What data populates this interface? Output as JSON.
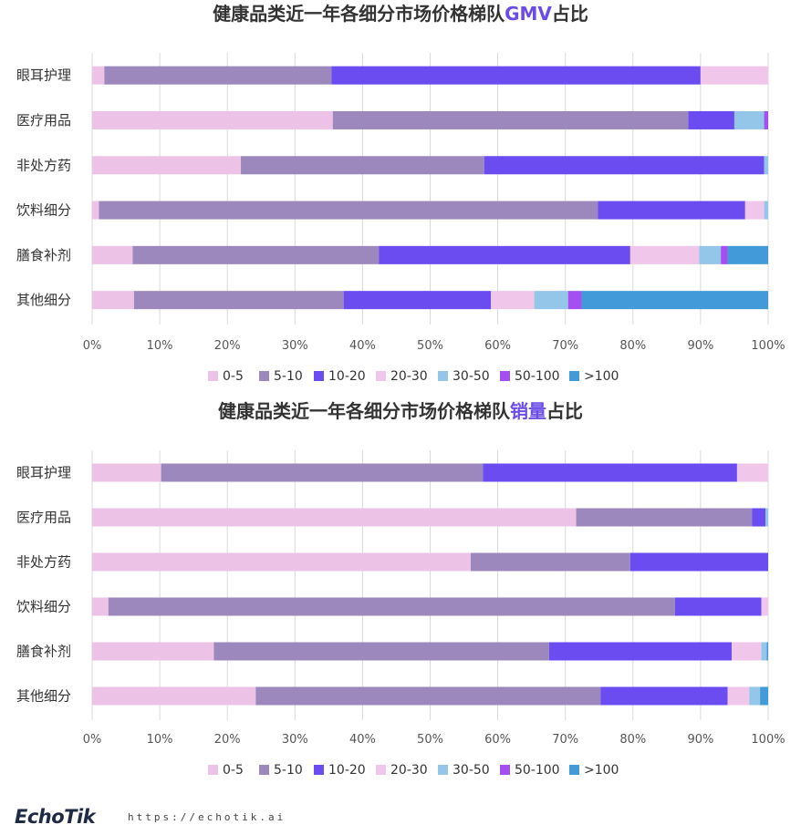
{
  "colors": {
    "0-5": "#ecc3e6",
    "5-10": "#9c88bc",
    "10-20": "#6a4cf0",
    "20-30": "#f0c6ea",
    "30-50": "#94c6ea",
    "50-100": "#a64ff0",
    ">100": "#429ad9",
    "title_highlight": "#6b4ce6"
  },
  "chart_data": [
    {
      "type": "bar",
      "orientation": "horizontal",
      "stacked": true,
      "title": {
        "prefix": "健康品类近一年各细分市场价格梯队",
        "highlight": "GMV",
        "suffix": "占比"
      },
      "categories": [
        "眼耳护理",
        "医疗用品",
        "非处方药",
        "饮料细分",
        "膳食补剂",
        "其他细分"
      ],
      "xlim": [
        0,
        100
      ],
      "xticks": [
        "0%",
        "10%",
        "20%",
        "30%",
        "40%",
        "50%",
        "60%",
        "70%",
        "80%",
        "90%",
        "100%"
      ],
      "legend": [
        "0-5",
        "5-10",
        "10-20",
        "20-30",
        "30-50",
        "50-100",
        ">100"
      ],
      "legend_position": "bottom",
      "series": [
        {
          "name": "0-5",
          "values": [
            1.8,
            35.6,
            22.0,
            1.0,
            6.0,
            6.2
          ]
        },
        {
          "name": "5-10",
          "values": [
            33.6,
            52.6,
            36.0,
            73.8,
            36.4,
            31.0
          ]
        },
        {
          "name": "10-20",
          "values": [
            54.6,
            6.8,
            41.4,
            21.8,
            37.2,
            21.8
          ]
        },
        {
          "name": "20-30",
          "values": [
            10.0,
            0,
            0,
            2.8,
            10.2,
            6.4
          ]
        },
        {
          "name": "30-50",
          "values": [
            0,
            4.4,
            0.6,
            0.6,
            3.2,
            5.0
          ]
        },
        {
          "name": "50-100",
          "values": [
            0,
            0.6,
            0,
            0,
            1.0,
            2.0
          ]
        },
        {
          "name": ">100",
          "values": [
            0,
            0,
            0,
            0,
            6.0,
            27.6
          ]
        }
      ]
    },
    {
      "type": "bar",
      "orientation": "horizontal",
      "stacked": true,
      "title": {
        "prefix": "健康品类近一年各细分市场价格梯队",
        "highlight": "销量",
        "suffix": "占比"
      },
      "categories": [
        "眼耳护理",
        "医疗用品",
        "非处方药",
        "饮料细分",
        "膳食补剂",
        "其他细分"
      ],
      "xlim": [
        0,
        100
      ],
      "xticks": [
        "0%",
        "10%",
        "20%",
        "30%",
        "40%",
        "50%",
        "60%",
        "70%",
        "80%",
        "90%",
        "100%"
      ],
      "legend": [
        "0-5",
        "5-10",
        "10-20",
        "20-30",
        "30-50",
        "50-100",
        ">100"
      ],
      "legend_position": "bottom",
      "series": [
        {
          "name": "0-5",
          "values": [
            10.2,
            71.6,
            56.0,
            2.4,
            18.0,
            24.2
          ]
        },
        {
          "name": "5-10",
          "values": [
            47.6,
            26.0,
            23.6,
            83.8,
            49.6,
            51.0
          ]
        },
        {
          "name": "10-20",
          "values": [
            37.6,
            2.0,
            20.4,
            12.8,
            27.0,
            18.8
          ]
        },
        {
          "name": "20-30",
          "values": [
            4.6,
            0,
            0,
            1.0,
            4.4,
            3.2
          ]
        },
        {
          "name": "30-50",
          "values": [
            0,
            0.4,
            0,
            0,
            0.8,
            1.6
          ]
        },
        {
          "name": "50-100",
          "values": [
            0,
            0,
            0,
            0,
            0,
            0
          ]
        },
        {
          "name": ">100",
          "values": [
            0,
            0,
            0,
            0,
            0.2,
            1.2
          ]
        }
      ]
    }
  ],
  "footer": {
    "logo": "EchoTik",
    "url": "https://echotik.ai"
  }
}
